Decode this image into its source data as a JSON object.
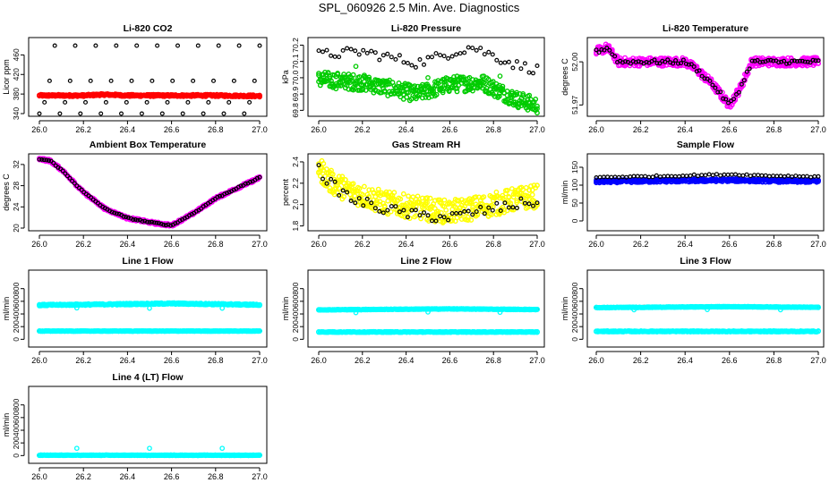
{
  "figure_title": "SPL_060926  2.5 Min. Ave. Diagnostics",
  "colors": {
    "black": "#000000",
    "red": "#ff0000",
    "green": "#00cc00",
    "magenta": "#ff00ff",
    "yellow": "#ffff00",
    "blue": "#0000ff",
    "cyan": "#00ffff"
  },
  "chart_data": [
    {
      "id": "co2",
      "type": "scatter",
      "title": "Li-820 CO2",
      "xlabel": "",
      "ylabel": "Licor ppm",
      "xlim": [
        26.0,
        27.0
      ],
      "ylim": [
        340,
        490
      ],
      "xticks": [
        26.0,
        26.2,
        26.4,
        26.6,
        26.8,
        27.0
      ],
      "xtick_labels": [
        "26.0",
        "26.2",
        "26.4",
        "26.6",
        "26.8",
        "27.0"
      ],
      "yticks": [
        340,
        380,
        420,
        460
      ],
      "ytick_labels": [
        "340",
        "380",
        "420",
        "460"
      ],
      "series": [
        {
          "name": "avg",
          "color": "#ff0000",
          "mode": "dense",
          "x": [
            26.0,
            26.2,
            26.3,
            26.4,
            26.6,
            26.8,
            27.0
          ],
          "y": [
            377,
            377,
            379,
            377,
            377,
            377,
            376
          ],
          "band": 2
        },
        {
          "name": "diag",
          "color": "#000000",
          "mode": "cycle",
          "x0": 26.0,
          "x1": 27.0,
          "n": 44,
          "levels": [
            340,
            363,
            407,
            479
          ]
        }
      ]
    },
    {
      "id": "pressure",
      "type": "scatter",
      "title": "Li-820 Pressure",
      "xlabel": "",
      "ylabel": "kPa",
      "xlim": [
        26.0,
        27.0
      ],
      "ylim": [
        69.78,
        70.23
      ],
      "xticks": [
        26.0,
        26.2,
        26.4,
        26.6,
        26.8,
        27.0
      ],
      "xtick_labels": [
        "26.0",
        "26.2",
        "26.4",
        "26.6",
        "26.8",
        "27.0"
      ],
      "yticks": [
        69.8,
        69.9,
        70.0,
        70.1,
        70.2
      ],
      "ytick_labels": [
        "69.8",
        "69.9",
        "70.0",
        "70.1",
        "70.2"
      ],
      "series": [
        {
          "name": "avg",
          "color": "#00cc00",
          "mode": "dense",
          "x": [
            26.0,
            26.2,
            26.45,
            26.6,
            26.75,
            26.9,
            27.0
          ],
          "y": [
            69.99,
            69.97,
            69.9,
            69.96,
            69.97,
            69.87,
            69.83
          ],
          "band": 0.05
        },
        {
          "name": "diag",
          "color": "#000000",
          "mode": "path",
          "x": [
            26.0,
            26.2,
            26.45,
            26.7,
            26.9,
            27.0
          ],
          "y": [
            70.14,
            70.16,
            70.09,
            70.19,
            70.08,
            70.05
          ],
          "n": 55,
          "jitter": 0.03
        },
        {
          "name": "outliers",
          "color": "#00cc00",
          "mode": "points",
          "x": [
            26.17,
            26.5,
            26.83
          ],
          "y": [
            70.07,
            70.0,
            70.01
          ]
        }
      ]
    },
    {
      "id": "licor_temp",
      "type": "scatter",
      "title": "Li-820 Temperature",
      "xlabel": "",
      "ylabel": "degrees C",
      "xlim": [
        26.0,
        27.0
      ],
      "ylim": [
        51.964,
        52.015
      ],
      "xticks": [
        26.0,
        26.2,
        26.4,
        26.6,
        26.8,
        27.0
      ],
      "xtick_labels": [
        "26.0",
        "26.2",
        "26.4",
        "26.6",
        "26.8",
        "27.0"
      ],
      "yticks": [
        51.97,
        52.0
      ],
      "ytick_labels": [
        "51.97",
        "52.00"
      ],
      "series": [
        {
          "name": "avg",
          "color": "#ff00ff",
          "mode": "dense",
          "x": [
            26.0,
            26.05,
            26.1,
            26.4,
            26.45,
            26.52,
            26.6,
            26.65,
            26.7,
            27.0
          ],
          "y": [
            52.007,
            52.01,
            52.0,
            52.0,
            51.995,
            51.985,
            51.97,
            51.982,
            52.0,
            52.0
          ],
          "band": 0.003
        },
        {
          "name": "diag",
          "color": "#000000",
          "mode": "path",
          "x": [
            26.0,
            26.05,
            26.1,
            26.4,
            26.45,
            26.52,
            26.6,
            26.65,
            26.7,
            27.0
          ],
          "y": [
            52.007,
            52.01,
            52.0,
            52.0,
            51.995,
            51.985,
            51.97,
            51.982,
            52.0,
            52.0
          ],
          "n": 85,
          "jitter": 0.0015
        }
      ]
    },
    {
      "id": "ambient_temp",
      "type": "scatter",
      "title": "Ambient Box Temperature",
      "xlabel": "",
      "ylabel": "degrees C",
      "xlim": [
        26.0,
        27.0
      ],
      "ylim": [
        20,
        33.5
      ],
      "xticks": [
        26.0,
        26.2,
        26.4,
        26.6,
        26.8,
        27.0
      ],
      "xtick_labels": [
        "26.0",
        "26.2",
        "26.4",
        "26.6",
        "26.8",
        "27.0"
      ],
      "yticks": [
        20,
        24,
        28,
        32
      ],
      "ytick_labels": [
        "20",
        "24",
        "28",
        "32"
      ],
      "series": [
        {
          "name": "avg",
          "color": "#ff00ff",
          "mode": "dense",
          "x": [
            26.0,
            26.05,
            26.1,
            26.2,
            26.3,
            26.4,
            26.5,
            26.6,
            26.7,
            26.8,
            26.9,
            27.0
          ],
          "y": [
            33.0,
            32.7,
            31.0,
            26.8,
            23.6,
            21.9,
            21.1,
            20.5,
            22.8,
            25.6,
            27.6,
            29.5
          ],
          "band": 0.25
        },
        {
          "name": "diag",
          "color": "#000000",
          "mode": "path",
          "x": [
            26.0,
            26.05,
            26.1,
            26.2,
            26.3,
            26.4,
            26.5,
            26.6,
            26.7,
            26.8,
            26.9,
            27.0
          ],
          "y": [
            33.0,
            32.7,
            31.0,
            26.8,
            23.6,
            21.9,
            21.1,
            20.5,
            22.8,
            25.6,
            27.6,
            29.5
          ],
          "n": 95,
          "jitter": 0.1
        }
      ]
    },
    {
      "id": "gas_rh",
      "type": "scatter",
      "title": "Gas Stream RH",
      "xlabel": "",
      "ylabel": "percent",
      "xlim": [
        26.0,
        27.0
      ],
      "ylim": [
        1.78,
        2.45
      ],
      "xticks": [
        26.0,
        26.2,
        26.4,
        26.6,
        26.8,
        27.0
      ],
      "xtick_labels": [
        "26.0",
        "26.2",
        "26.4",
        "26.6",
        "26.8",
        "27.0"
      ],
      "yticks": [
        1.8,
        2.0,
        2.2,
        2.4
      ],
      "ytick_labels": [
        "1.8",
        "2.0",
        "2.2",
        "2.4"
      ],
      "series": [
        {
          "name": "avg",
          "color": "#ffff00",
          "mode": "dense",
          "x": [
            26.0,
            26.05,
            26.15,
            26.3,
            26.45,
            26.6,
            26.75,
            26.9,
            27.0
          ],
          "y": [
            2.35,
            2.22,
            2.12,
            2.02,
            1.97,
            1.93,
            1.98,
            2.05,
            2.08
          ],
          "band": 0.11
        },
        {
          "name": "diag",
          "color": "#000000",
          "mode": "path",
          "x": [
            26.0,
            26.05,
            26.15,
            26.3,
            26.45,
            26.6,
            26.75,
            26.9,
            27.0
          ],
          "y": [
            2.33,
            2.2,
            2.05,
            1.96,
            1.9,
            1.88,
            1.94,
            2.0,
            2.03
          ],
          "n": 55,
          "jitter": 0.05
        }
      ]
    },
    {
      "id": "sample_flow",
      "type": "scatter",
      "title": "Sample Flow",
      "xlabel": "",
      "ylabel": "ml/min",
      "xlim": [
        26.0,
        27.0
      ],
      "ylim": [
        -20,
        180
      ],
      "xticks": [
        26.0,
        26.2,
        26.4,
        26.6,
        26.8,
        27.0
      ],
      "xtick_labels": [
        "26.0",
        "26.2",
        "26.4",
        "26.6",
        "26.8",
        "27.0"
      ],
      "yticks": [
        0,
        50,
        100,
        150
      ],
      "ytick_labels": [
        "0",
        "50",
        "100",
        "150"
      ],
      "series": [
        {
          "name": "avg",
          "color": "#0000ff",
          "mode": "dense",
          "x": [
            26.0,
            26.3,
            26.6,
            26.8,
            27.0
          ],
          "y": [
            110,
            112,
            114,
            112,
            111
          ],
          "band": 4
        },
        {
          "name": "diag",
          "color": "#000000",
          "mode": "path",
          "x": [
            26.0,
            26.3,
            26.6,
            26.8,
            27.0
          ],
          "y": [
            122,
            125,
            130,
            126,
            124
          ],
          "n": 60,
          "jitter": 2
        }
      ]
    },
    {
      "id": "line1_flow",
      "type": "scatter",
      "title": "Line 1 Flow",
      "xlabel": "",
      "ylabel": "ml/min",
      "xlim": [
        26.0,
        27.0
      ],
      "ylim": [
        -80,
        1050
      ],
      "xticks": [
        26.0,
        26.2,
        26.4,
        26.6,
        26.8,
        27.0
      ],
      "xtick_labels": [
        "26.0",
        "26.2",
        "26.4",
        "26.6",
        "26.8",
        "27.0"
      ],
      "yticks": [
        0,
        200,
        400,
        600,
        800
      ],
      "ytick_labels": [
        "0",
        "200",
        "400",
        "600",
        "800"
      ],
      "series": [
        {
          "name": "flow_high",
          "color": "#00ffff",
          "mode": "dense",
          "x": [
            26.0,
            26.5,
            26.6,
            27.0
          ],
          "y": [
            540,
            560,
            565,
            545
          ],
          "band": 12
        },
        {
          "name": "flow_low",
          "color": "#000000",
          "mode": "path",
          "x": [
            26.0,
            27.0
          ],
          "y": [
            130,
            130
          ],
          "n": 80,
          "jitter": 2
        },
        {
          "name": "flow_low_fill",
          "color": "#00ffff",
          "mode": "dense",
          "x": [
            26.0,
            27.0
          ],
          "y": [
            130,
            130
          ],
          "band": 4
        },
        {
          "name": "outliers",
          "color": "#00ffff",
          "mode": "points",
          "x": [
            26.17,
            26.5,
            26.83
          ],
          "y": [
            495,
            490,
            490
          ]
        }
      ]
    },
    {
      "id": "line2_flow",
      "type": "scatter",
      "title": "Line 2 Flow",
      "xlabel": "",
      "ylabel": "ml/min",
      "xlim": [
        26.0,
        27.0
      ],
      "ylim": [
        -80,
        1050
      ],
      "xticks": [
        26.0,
        26.2,
        26.4,
        26.6,
        26.8,
        27.0
      ],
      "xtick_labels": [
        "26.0",
        "26.2",
        "26.4",
        "26.6",
        "26.8",
        "27.0"
      ],
      "yticks": [
        0,
        200,
        400,
        600,
        800
      ],
      "ytick_labels": [
        "0",
        "200",
        "400",
        "600",
        "800"
      ],
      "series": [
        {
          "name": "flow_low",
          "color": "#00ffff",
          "mode": "dense",
          "x": [
            26.0,
            27.0
          ],
          "y": [
            115,
            115
          ],
          "band": 6
        },
        {
          "name": "flow_high",
          "color": "#000000",
          "mode": "path",
          "x": [
            26.0,
            26.6,
            27.0
          ],
          "y": [
            465,
            480,
            470
          ],
          "n": 80,
          "jitter": 3
        },
        {
          "name": "flow_high_fill",
          "color": "#00ffff",
          "mode": "dense",
          "x": [
            26.0,
            26.6,
            27.0
          ],
          "y": [
            465,
            480,
            470
          ],
          "band": 5
        },
        {
          "name": "outliers",
          "color": "#00ffff",
          "mode": "points",
          "x": [
            26.0,
            26.17,
            26.5,
            26.83
          ],
          "y": [
            470,
            420,
            430,
            425
          ]
        }
      ]
    },
    {
      "id": "line3_flow",
      "type": "scatter",
      "title": "Line 3 Flow",
      "xlabel": "",
      "ylabel": "ml/min",
      "xlim": [
        26.0,
        27.0
      ],
      "ylim": [
        -80,
        1050
      ],
      "xticks": [
        26.0,
        26.2,
        26.4,
        26.6,
        26.8,
        27.0
      ],
      "xtick_labels": [
        "26.0",
        "26.2",
        "26.4",
        "26.6",
        "26.8",
        "27.0"
      ],
      "yticks": [
        0,
        200,
        400,
        600,
        800
      ],
      "ytick_labels": [
        "0",
        "200",
        "400",
        "600",
        "800"
      ],
      "series": [
        {
          "name": "flow_low",
          "color": "#00ffff",
          "mode": "dense",
          "x": [
            26.0,
            27.0
          ],
          "y": [
            125,
            125
          ],
          "band": 8
        },
        {
          "name": "flow_high",
          "color": "#000000",
          "mode": "path",
          "x": [
            26.0,
            26.6,
            27.0
          ],
          "y": [
            500,
            515,
            505
          ],
          "n": 80,
          "jitter": 3
        },
        {
          "name": "flow_high_fill",
          "color": "#00ffff",
          "mode": "dense",
          "x": [
            26.0,
            26.6,
            27.0
          ],
          "y": [
            500,
            515,
            505
          ],
          "band": 5
        },
        {
          "name": "outliers",
          "color": "#00ffff",
          "mode": "points",
          "x": [
            26.0,
            26.17,
            26.5,
            26.83
          ],
          "y": [
            505,
            465,
            470,
            465
          ]
        }
      ]
    },
    {
      "id": "line4_flow",
      "type": "scatter",
      "title": "Line 4 (LT) Flow",
      "xlabel": "",
      "ylabel": "ml/min",
      "xlim": [
        26.0,
        27.0
      ],
      "ylim": [
        -80,
        1050
      ],
      "xticks": [
        26.0,
        26.2,
        26.4,
        26.6,
        26.8,
        27.0
      ],
      "xtick_labels": [
        "26.0",
        "26.2",
        "26.4",
        "26.6",
        "26.8",
        "27.0"
      ],
      "yticks": [
        0,
        200,
        400,
        600,
        800
      ],
      "ytick_labels": [
        "0",
        "200",
        "400",
        "600",
        "800"
      ],
      "series": [
        {
          "name": "flow",
          "color": "#000000",
          "mode": "path",
          "x": [
            26.0,
            27.0
          ],
          "y": [
            5,
            5
          ],
          "n": 80,
          "jitter": 2
        },
        {
          "name": "flow_fill",
          "color": "#00ffff",
          "mode": "dense",
          "x": [
            26.0,
            27.0
          ],
          "y": [
            5,
            5
          ],
          "band": 4
        },
        {
          "name": "outliers",
          "color": "#00ffff",
          "mode": "points",
          "x": [
            26.17,
            26.5,
            26.83
          ],
          "y": [
            115,
            115,
            115
          ]
        }
      ]
    }
  ]
}
